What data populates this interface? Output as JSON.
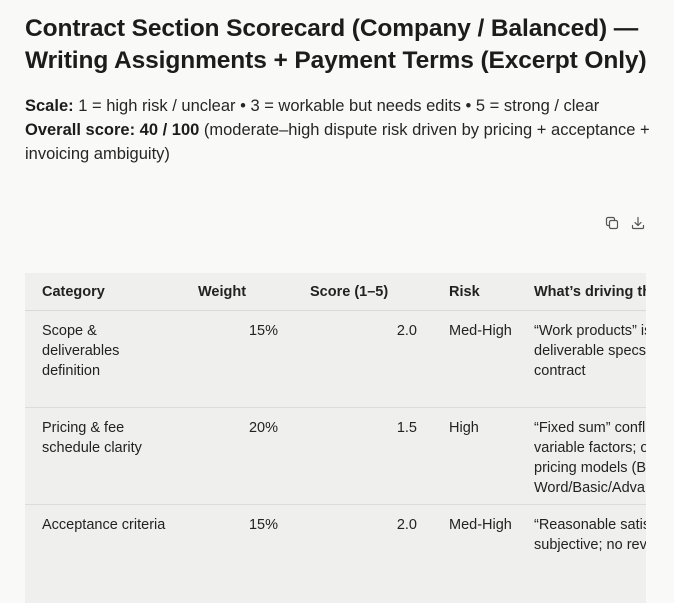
{
  "title": "Contract Section Scorecard (Company / Balanced) — Writing Assignments + Payment Terms (Excerpt Only)",
  "scale": {
    "label": "Scale:",
    "text": "1 = high risk / unclear • 3 = workable but needs edits • 5 = strong / clear"
  },
  "overall": {
    "label": "Overall score:",
    "value": "40 / 100",
    "note": "(moderate–high dispute risk driven by pricing + acceptance + invoicing ambiguity)"
  },
  "toolbar": {
    "copy_icon": "copy-icon",
    "download_icon": "download-icon"
  },
  "table": {
    "headers": {
      "category": "Category",
      "weight": "Weight",
      "score": "Score (1–5)",
      "risk": "Risk",
      "driver": "What’s driving the score"
    },
    "rows": [
      {
        "category": "Scope & deliverables definition",
        "weight": "15%",
        "score": "2.0",
        "risk": "Med-High",
        "driver": "“Work products” is broad; deliverable specs live outside contract"
      },
      {
        "category": "Pricing & fee schedule clarity",
        "weight": "20%",
        "score": "1.5",
        "risk": "High",
        "driver": "“Fixed sum” conflicts with variable factors; overlapping pricing models (Brief/By Word/Basic/Advanced/Expert)"
      },
      {
        "category": "Acceptance criteria",
        "weight": "15%",
        "score": "2.0",
        "risk": "Med-High",
        "driver": "“Reasonable satisfaction” is subjective; no review window"
      }
    ]
  }
}
